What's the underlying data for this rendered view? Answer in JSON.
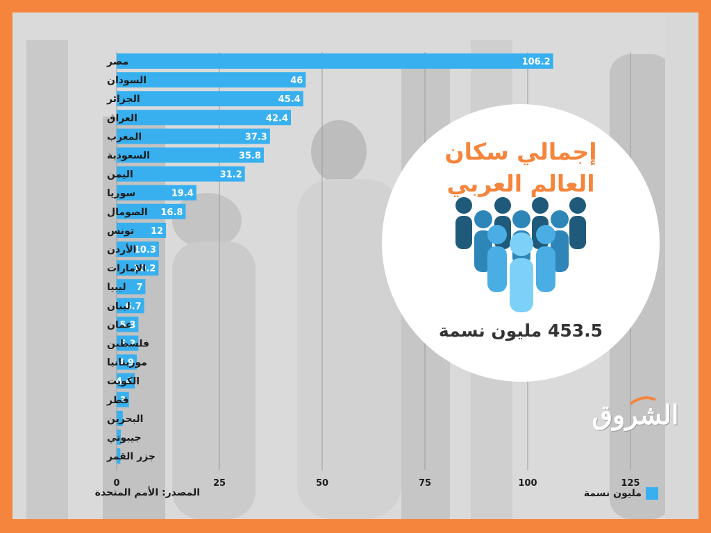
{
  "infographic": {
    "title_line1": "إجمالي سكان",
    "title_line2": "العالم العربي",
    "total": "453.5 مليون نسمة",
    "source": "المصدر: الأمم المتحدة",
    "legend_label": "مليون نسمة",
    "logo_text": "الشروق",
    "accent_color": "#f5853c",
    "bar_color": "#38b0f0"
  },
  "chart_data": {
    "type": "bar",
    "orientation": "horizontal",
    "categories": [
      "مصر",
      "السودان",
      "الجزائر",
      "العراق",
      "المغرب",
      "السعودية",
      "اليمن",
      "سوريا",
      "الصومال",
      "تونس",
      "الأردن",
      "الإمارات",
      "ليبيا",
      "لبنان",
      "عمان",
      "فلسطين",
      "موريتانيا",
      "الكويت",
      "قطر",
      "البحرين",
      "جيبوتي",
      "جزر القمر"
    ],
    "values": [
      106.2,
      46,
      45.4,
      42.4,
      37.3,
      35.8,
      31.2,
      19.4,
      16.8,
      12,
      10.3,
      10.2,
      7,
      6.7,
      5.3,
      5.3,
      4.9,
      4.4,
      3,
      1.5,
      1,
      0.9
    ],
    "value_labels": [
      "106.2",
      "46",
      "45.4",
      "42.4",
      "37.3",
      "35.8",
      "31.2",
      "19.4",
      "16.8",
      "12",
      "10.3",
      "10.2",
      "7",
      "6.7",
      "5.3",
      "5.3",
      "4.9",
      "4.4",
      "3",
      "",
      "",
      ""
    ],
    "xticks": [
      0,
      25,
      50,
      75,
      100,
      125
    ],
    "xlim": [
      0,
      130
    ],
    "grid": true,
    "series": [
      {
        "name": "مليون نسمة",
        "values": [
          106.2,
          46,
          45.4,
          42.4,
          37.3,
          35.8,
          31.2,
          19.4,
          16.8,
          12,
          10.3,
          10.2,
          7,
          6.7,
          5.3,
          5.3,
          4.9,
          4.4,
          3,
          1.5,
          1,
          0.9
        ]
      }
    ]
  }
}
